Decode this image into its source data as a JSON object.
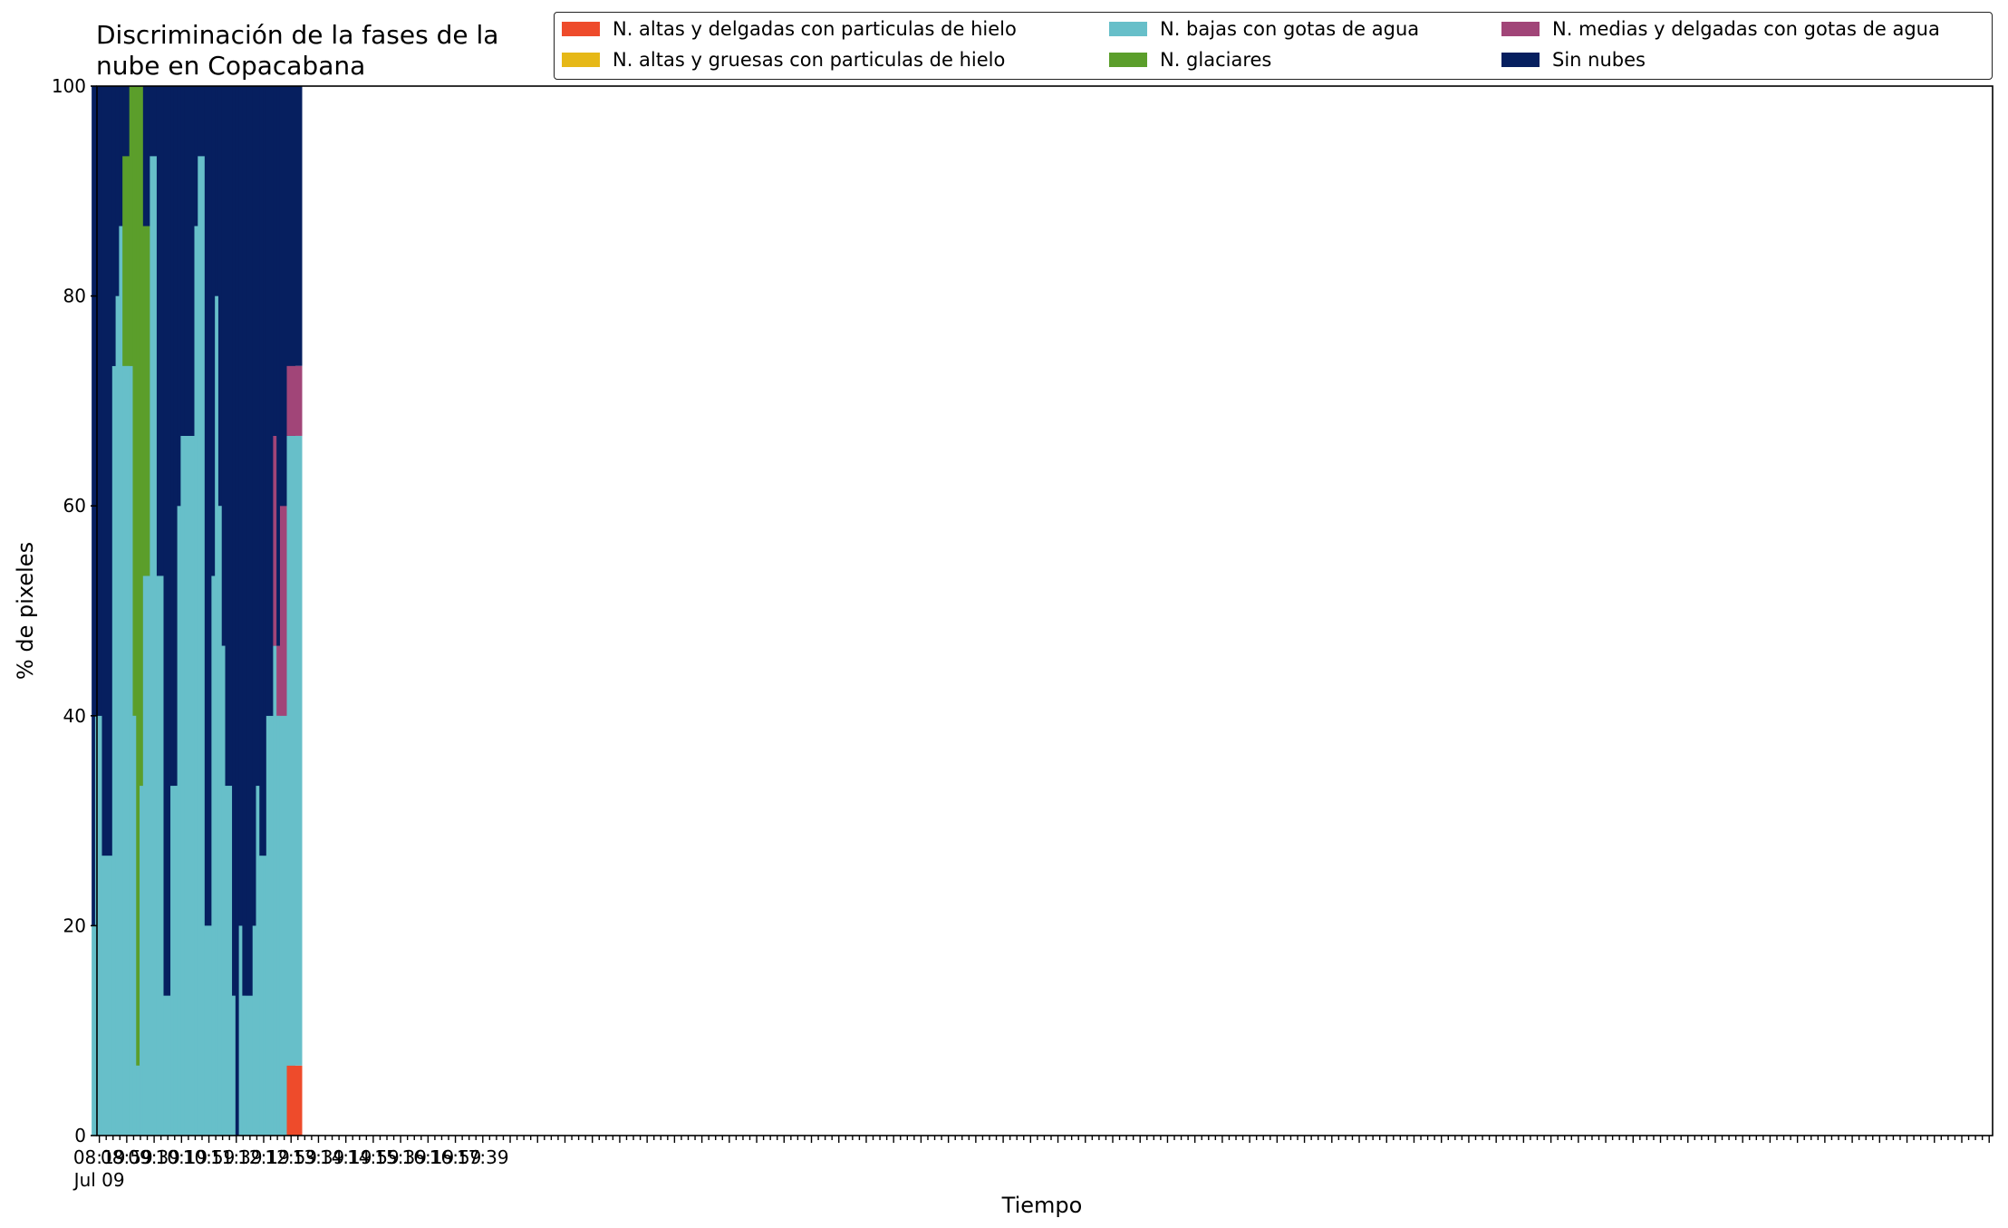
{
  "chart_data": {
    "type": "bar",
    "stacked": true,
    "title": "Discriminación de la fases de la\nnube en Copacabana",
    "xlabel": "Tiempo",
    "ylabel": "% de pixeles",
    "ylim": [
      0,
      100
    ],
    "yticks": [
      0,
      20,
      40,
      60,
      80,
      100
    ],
    "xlim_minutes_from_start": [
      -7,
      5530
    ],
    "xticks": [
      {
        "label": "08:19",
        "sublabel": "Jul 09"
      },
      {
        "label": "08:59"
      },
      {
        "label": "09:39"
      },
      {
        "label": "10:19"
      },
      {
        "label": "10:59"
      },
      {
        "label": "11:39"
      },
      {
        "label": "12:19"
      },
      {
        "label": "12:59"
      },
      {
        "label": "13:39"
      },
      {
        "label": "14:19"
      },
      {
        "label": "14:59"
      },
      {
        "label": "15:39"
      },
      {
        "label": "16:19"
      },
      {
        "label": "16:59"
      },
      {
        "label": "17:39"
      }
    ],
    "x": [
      "08:19",
      "08:29",
      "08:39",
      "08:49",
      "09:19",
      "09:29",
      "09:39",
      "09:49",
      "10:09",
      "10:19",
      "10:29",
      "10:39",
      "10:49",
      "11:09",
      "11:29",
      "11:49",
      "12:09",
      "12:19",
      "12:29",
      "12:39",
      "12:49",
      "13:19",
      "13:29",
      "13:49",
      "14:09",
      "14:19",
      "14:29",
      "14:39",
      "14:49",
      "15:09",
      "15:19",
      "15:29",
      "15:39",
      "15:49",
      "16:09",
      "16:19",
      "16:29",
      "16:39",
      "16:49",
      "17:09",
      "17:19",
      "17:29",
      "17:49"
    ],
    "series": [
      {
        "name": "N. altas y delgadas con particulas de hielo",
        "color": "#ee4b2b",
        "values": [
          0,
          0,
          0,
          0,
          0,
          0,
          0,
          0,
          0,
          0,
          0,
          0,
          0,
          0,
          0,
          0,
          0,
          0,
          0,
          0,
          0,
          0,
          0,
          0,
          0,
          0,
          0,
          0,
          0,
          0,
          0,
          0,
          0,
          0,
          0,
          0,
          0,
          0,
          0,
          0,
          0,
          0,
          6.67
        ]
      },
      {
        "name": "N. altas y gruesas con particulas de hielo",
        "color": "#e6b817",
        "values": [
          0,
          0,
          0,
          0,
          0,
          0,
          0,
          0,
          0,
          0,
          0,
          0,
          0,
          0,
          0,
          0,
          0,
          0,
          0,
          0,
          0,
          0,
          0,
          0,
          0,
          0,
          0,
          0,
          0,
          0,
          0,
          0,
          0,
          0,
          0,
          0,
          0,
          0,
          0,
          0,
          0,
          0,
          0
        ]
      },
      {
        "name": "N. bajas con gotas de agua",
        "color": "#67bfc9",
        "values": [
          20,
          40,
          40,
          26.67,
          73.33,
          80,
          86.67,
          73.33,
          73.33,
          40,
          6.67,
          33.33,
          53.33,
          93.33,
          53.33,
          13.33,
          33.33,
          33.33,
          60,
          66.67,
          66.67,
          86.67,
          93.33,
          20,
          53.33,
          80,
          60,
          46.67,
          33.33,
          13.33,
          0,
          20,
          13.33,
          13.33,
          20,
          33.33,
          26.67,
          26.67,
          40,
          46.67,
          40,
          40,
          60
        ]
      },
      {
        "name": "N. glaciares",
        "color": "#5b9e2b",
        "values": [
          0,
          0,
          0,
          0,
          0,
          0,
          0,
          20,
          26.67,
          60,
          93.33,
          66.67,
          33.33,
          0,
          0,
          0,
          0,
          0,
          0,
          0,
          0,
          0,
          0,
          0,
          0,
          0,
          0,
          0,
          0,
          0,
          0,
          0,
          0,
          0,
          0,
          0,
          0,
          0,
          0,
          0,
          0,
          0,
          0
        ]
      },
      {
        "name": "N. medias y delgadas con gotas de agua",
        "color": "#a14578",
        "values": [
          0,
          0,
          0,
          0,
          0,
          0,
          0,
          0,
          0,
          0,
          0,
          0,
          0,
          0,
          0,
          0,
          0,
          0,
          0,
          0,
          0,
          0,
          0,
          0,
          0,
          0,
          0,
          0,
          0,
          0,
          0,
          0,
          0,
          0,
          0,
          0,
          0,
          0,
          0,
          20,
          6.67,
          20,
          6.67
        ]
      },
      {
        "name": "Sin nubes",
        "color": "#061f5f",
        "values": [
          80,
          60,
          60,
          73.33,
          26.67,
          20,
          13.33,
          6.67,
          0,
          0,
          0,
          0,
          13.33,
          6.67,
          46.67,
          86.67,
          66.67,
          66.67,
          40,
          33.33,
          33.33,
          13.33,
          6.67,
          80,
          46.67,
          20,
          40,
          53.33,
          66.67,
          86.67,
          100,
          80,
          86.67,
          86.67,
          80,
          66.67,
          73.33,
          73.33,
          60,
          33.33,
          53.33,
          40,
          26.67
        ]
      }
    ],
    "legend": {
      "placement": "top-right",
      "columns": 3
    },
    "grid": false
  }
}
